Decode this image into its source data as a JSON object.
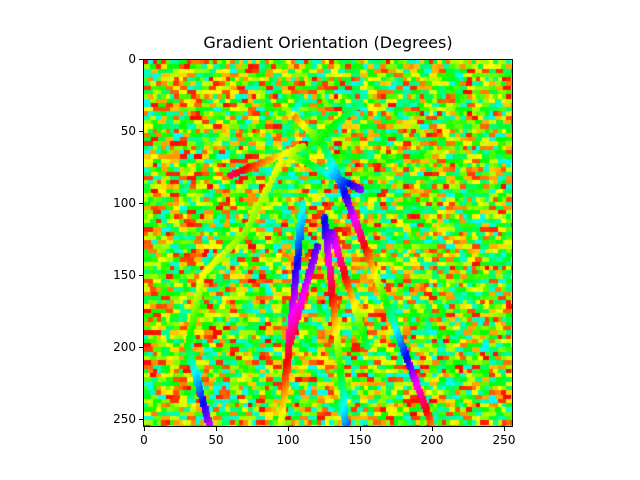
{
  "figure": {
    "title": "Gradient Orientation (Degrees)",
    "colormap": "hsv",
    "colormap_colors": [
      "#ff0000",
      "#ffff00",
      "#00ff00",
      "#00ffff",
      "#0000ff",
      "#ff00ff",
      "#ff0000"
    ]
  },
  "axes": {
    "x_ticks": [
      "0",
      "50",
      "100",
      "150",
      "200",
      "250"
    ],
    "y_ticks": [
      "0",
      "50",
      "100",
      "150",
      "200",
      "250"
    ],
    "x_range": [
      0,
      255
    ],
    "y_range": [
      0,
      255
    ]
  }
}
